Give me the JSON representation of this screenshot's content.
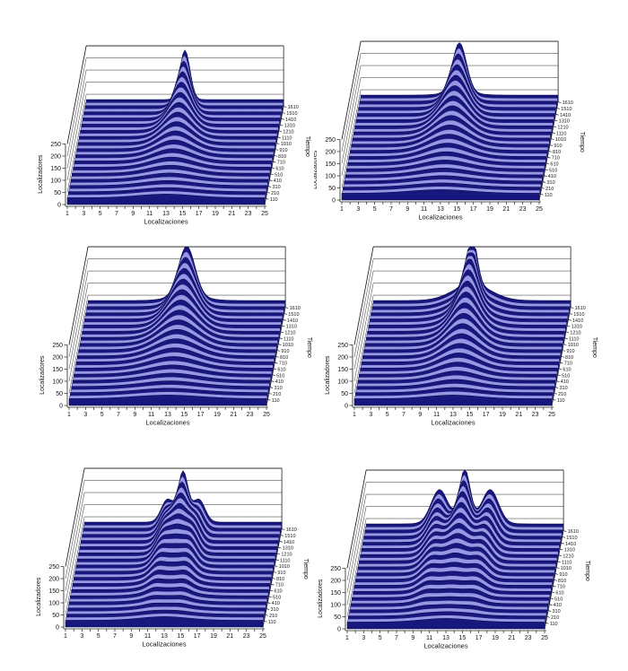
{
  "colors": {
    "background": "#ffffff",
    "slice_dark": "#17177e",
    "slice_light": "#9897e6",
    "stroke_dark": "#000040",
    "stroke_light": "#23237a",
    "grid": "#555555",
    "frame": "#222222",
    "text": "#111111"
  },
  "chart_data": [
    {
      "id": "top-left",
      "type": "area",
      "projection": "3d-ridge",
      "title": "",
      "xlabel": "Localizaciones",
      "ylabel": "Localizadores",
      "zlabel": "Tiempo",
      "x_range": [
        1,
        25
      ],
      "y_range": [
        0,
        250
      ],
      "x_tick_labels": [
        "1",
        "3",
        "5",
        "7",
        "9",
        "11",
        "13",
        "15",
        "17",
        "19",
        "21",
        "23",
        "25"
      ],
      "y_tick_labels": [
        "0",
        "50",
        "100",
        "150",
        "200",
        "250"
      ],
      "z_tick_labels": [
        "110",
        "210",
        "310",
        "410",
        "510",
        "610",
        "710",
        "810",
        "910",
        "1010",
        "1110",
        "1210",
        "1310",
        "1410",
        "1510",
        "1610"
      ],
      "n_slices": 33,
      "surface": {
        "center": 13,
        "base": 28,
        "cap": 250,
        "amp_front": 15,
        "amp_back": 205,
        "amp_exp": 1.7,
        "width_front": 3.4,
        "width_back": 0.62,
        "side_offset": 0,
        "side_amp": 0,
        "side_width": 1,
        "side_exp": 1.5,
        "shoulder_amp": 0,
        "shoulder_width": 2
      }
    },
    {
      "id": "top-right",
      "type": "area",
      "projection": "3d-ridge",
      "title": "",
      "xlabel": "Localizaciones",
      "ylabel": "Localizadores",
      "zlabel": "Tiempo",
      "x_range": [
        1,
        25
      ],
      "y_range": [
        0,
        250
      ],
      "x_tick_labels": [
        "1",
        "3",
        "5",
        "7",
        "9",
        "11",
        "13",
        "15",
        "17",
        "19",
        "21",
        "23",
        "25"
      ],
      "y_tick_labels": [
        "0",
        "50",
        "100",
        "150",
        "200",
        "250"
      ],
      "z_tick_labels": [
        "110",
        "210",
        "310",
        "410",
        "510",
        "610",
        "710",
        "810",
        "910",
        "1010",
        "1110",
        "1210",
        "1310",
        "1410",
        "1510",
        "1610"
      ],
      "n_slices": 33,
      "surface": {
        "center": 13,
        "base": 28,
        "cap": 250,
        "amp_front": 15,
        "amp_back": 205,
        "amp_exp": 1.7,
        "width_front": 3.7,
        "width_back": 0.85,
        "side_offset": 0,
        "side_amp": 0,
        "side_width": 1,
        "side_exp": 1.5,
        "shoulder_amp": 12,
        "shoulder_width": 1.9
      }
    },
    {
      "id": "middle-left",
      "type": "area",
      "projection": "3d-ridge",
      "title": "",
      "xlabel": "Localizaciones",
      "ylabel": "Localizadores",
      "zlabel": "Tiempo",
      "x_range": [
        1,
        25
      ],
      "y_range": [
        0,
        250
      ],
      "x_tick_labels": [
        "1",
        "3",
        "5",
        "7",
        "9",
        "11",
        "13",
        "15",
        "17",
        "19",
        "21",
        "23",
        "25"
      ],
      "y_tick_labels": [
        "0",
        "50",
        "100",
        "150",
        "200",
        "250"
      ],
      "z_tick_labels": [
        "110",
        "210",
        "310",
        "410",
        "510",
        "610",
        "710",
        "810",
        "910",
        "1010",
        "1110",
        "1210",
        "1310",
        "1410",
        "1510",
        "1610"
      ],
      "n_slices": 33,
      "surface": {
        "center": 13,
        "base": 28,
        "cap": 250,
        "amp_front": 15,
        "amp_back": 205,
        "amp_exp": 1.7,
        "width_front": 4.0,
        "width_back": 1.0,
        "side_offset": 0,
        "side_amp": 0,
        "side_width": 1,
        "side_exp": 1.5,
        "shoulder_amp": 20,
        "shoulder_width": 2.1
      }
    },
    {
      "id": "middle-right",
      "type": "area",
      "projection": "3d-ridge",
      "title": "",
      "xlabel": "Localizaciones",
      "ylabel": "Localizadores",
      "zlabel": "Tiempo",
      "x_range": [
        1,
        25
      ],
      "y_range": [
        0,
        250
      ],
      "x_tick_labels": [
        "1",
        "3",
        "5",
        "7",
        "9",
        "11",
        "13",
        "15",
        "17",
        "19",
        "21",
        "23",
        "25"
      ],
      "y_tick_labels": [
        "0",
        "50",
        "100",
        "150",
        "200",
        "250"
      ],
      "z_tick_labels": [
        "110",
        "210",
        "310",
        "410",
        "510",
        "610",
        "710",
        "810",
        "910",
        "1010",
        "1110",
        "1210",
        "1310",
        "1410",
        "1510",
        "1610"
      ],
      "n_slices": 33,
      "surface": {
        "center": 13,
        "base": 28,
        "cap": 250,
        "amp_front": 15,
        "amp_back": 205,
        "amp_exp": 1.7,
        "width_front": 3.1,
        "width_back": 0.6,
        "side_offset": 0,
        "side_amp": 0,
        "side_width": 1,
        "side_exp": 1.5,
        "shoulder_amp": 68,
        "shoulder_width": 2.3
      }
    },
    {
      "id": "bottom-left",
      "type": "area",
      "projection": "3d-ridge",
      "title": "",
      "xlabel": "Localizaciones",
      "ylabel": "Localizadores",
      "zlabel": "Tiempo",
      "x_range": [
        1,
        25
      ],
      "y_range": [
        0,
        250
      ],
      "x_tick_labels": [
        "1",
        "3",
        "5",
        "7",
        "9",
        "11",
        "13",
        "15",
        "17",
        "19",
        "21",
        "23",
        "25"
      ],
      "y_tick_labels": [
        "0",
        "50",
        "100",
        "150",
        "200",
        "250"
      ],
      "z_tick_labels": [
        "110",
        "210",
        "310",
        "410",
        "510",
        "610",
        "710",
        "810",
        "910",
        "1010",
        "1110",
        "1210",
        "1310",
        "1410",
        "1510",
        "1610"
      ],
      "n_slices": 33,
      "surface": {
        "center": 13,
        "base": 28,
        "cap": 250,
        "amp_front": 15,
        "amp_back": 205,
        "amp_exp": 1.7,
        "width_front": 2.9,
        "width_back": 0.6,
        "side_offset": 1.9,
        "side_amp": 95,
        "side_width": 0.75,
        "side_exp": 1.6,
        "shoulder_amp": 0,
        "shoulder_width": 2
      }
    },
    {
      "id": "bottom-right",
      "type": "area",
      "projection": "3d-ridge",
      "title": "",
      "xlabel": "Localizaciones",
      "ylabel": "Localizadores",
      "zlabel": "Tiempo",
      "x_range": [
        1,
        25
      ],
      "y_range": [
        0,
        250
      ],
      "x_tick_labels": [
        "1",
        "3",
        "5",
        "7",
        "9",
        "11",
        "13",
        "15",
        "17",
        "19",
        "21",
        "23",
        "25"
      ],
      "y_tick_labels": [
        "0",
        "50",
        "100",
        "150",
        "200",
        "250"
      ],
      "z_tick_labels": [
        "110",
        "210",
        "310",
        "410",
        "510",
        "610",
        "710",
        "810",
        "910",
        "1010",
        "1110",
        "1210",
        "1310",
        "1410",
        "1510",
        "1610"
      ],
      "n_slices": 33,
      "surface": {
        "center": 13,
        "base": 28,
        "cap": 250,
        "amp_front": 15,
        "amp_back": 210,
        "amp_exp": 1.7,
        "width_front": 3.0,
        "width_back": 0.65,
        "side_offset": 3.1,
        "side_amp": 135,
        "side_width": 1.0,
        "side_exp": 1.5,
        "shoulder_amp": 15,
        "shoulder_width": 2.6
      }
    }
  ]
}
